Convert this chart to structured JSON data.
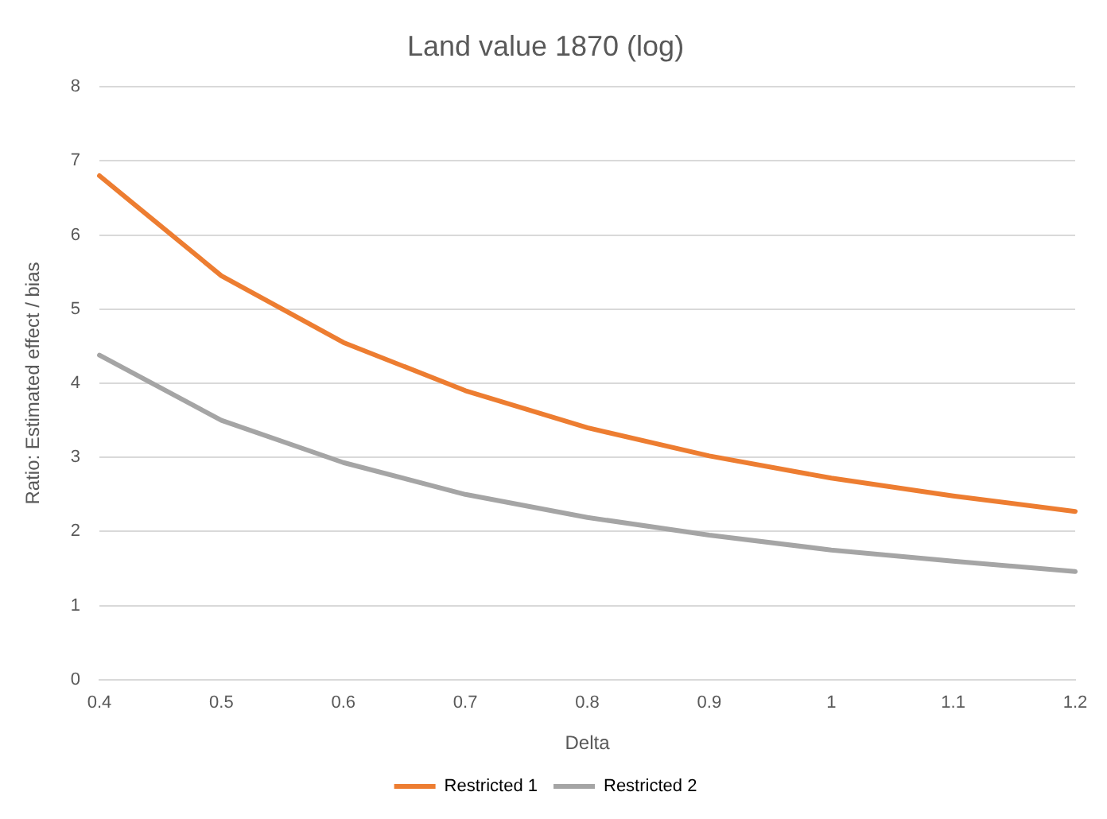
{
  "chart_data": {
    "type": "line",
    "title": "Land value 1870 (log)",
    "xlabel": "Delta",
    "ylabel": "Ratio: Estimated effect / bias",
    "categories": [
      "0.4",
      "0.5",
      "0.6",
      "0.7",
      "0.8",
      "0.9",
      "1",
      "1.1",
      "1.2"
    ],
    "series": [
      {
        "name": "Restricted 1",
        "color": "#ed7d31",
        "values": [
          6.8,
          5.45,
          4.55,
          3.9,
          3.4,
          3.02,
          2.72,
          2.48,
          2.27
        ]
      },
      {
        "name": "Restricted 2",
        "color": "#a5a5a5",
        "values": [
          4.38,
          3.5,
          2.93,
          2.5,
          2.19,
          1.95,
          1.75,
          1.6,
          1.46
        ]
      }
    ],
    "ylim": [
      0,
      8
    ],
    "yticks": [
      0,
      1,
      2,
      3,
      4,
      5,
      6,
      7,
      8
    ],
    "grid": "y",
    "legend": "bottom",
    "marker": "none",
    "line_style": "solid"
  }
}
